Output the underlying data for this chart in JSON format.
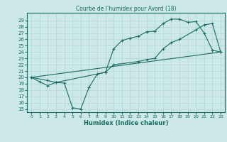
{
  "title": "Courbe de l'humidex pour Avord (18)",
  "xlabel": "Humidex (Indice chaleur)",
  "bg_color": "#cce8e8",
  "line_color": "#1a6b5e",
  "grid_color": "#b0d8d8",
  "xlim": [
    -0.5,
    23.5
  ],
  "ylim": [
    14.5,
    30.2
  ],
  "xticks": [
    0,
    1,
    2,
    3,
    4,
    5,
    6,
    7,
    8,
    9,
    10,
    11,
    12,
    13,
    14,
    15,
    16,
    17,
    18,
    19,
    20,
    21,
    22,
    23
  ],
  "yticks": [
    15,
    16,
    17,
    18,
    19,
    20,
    21,
    22,
    23,
    24,
    25,
    26,
    27,
    28,
    29
  ],
  "line1_x": [
    0,
    1,
    2,
    3,
    4,
    5,
    6,
    7,
    8,
    9,
    10,
    11,
    12,
    13,
    14,
    15,
    16,
    17,
    18,
    19,
    20,
    21,
    22,
    23
  ],
  "line1_y": [
    20.0,
    19.3,
    18.7,
    19.2,
    19.1,
    15.2,
    15.0,
    18.4,
    20.5,
    20.8,
    24.5,
    25.8,
    26.2,
    26.5,
    27.2,
    27.3,
    28.5,
    29.2,
    29.2,
    28.7,
    28.8,
    27.0,
    24.3,
    24.0
  ],
  "line2_x": [
    0,
    2,
    3,
    9,
    10,
    13,
    14,
    15,
    16,
    17,
    18,
    20,
    21,
    22,
    23
  ],
  "line2_y": [
    20.0,
    19.5,
    19.2,
    20.8,
    22.0,
    22.5,
    22.8,
    23.0,
    24.5,
    25.5,
    26.0,
    27.5,
    28.3,
    28.5,
    24.0
  ],
  "line3_x": [
    0,
    23
  ],
  "line3_y": [
    20.0,
    24.0
  ]
}
